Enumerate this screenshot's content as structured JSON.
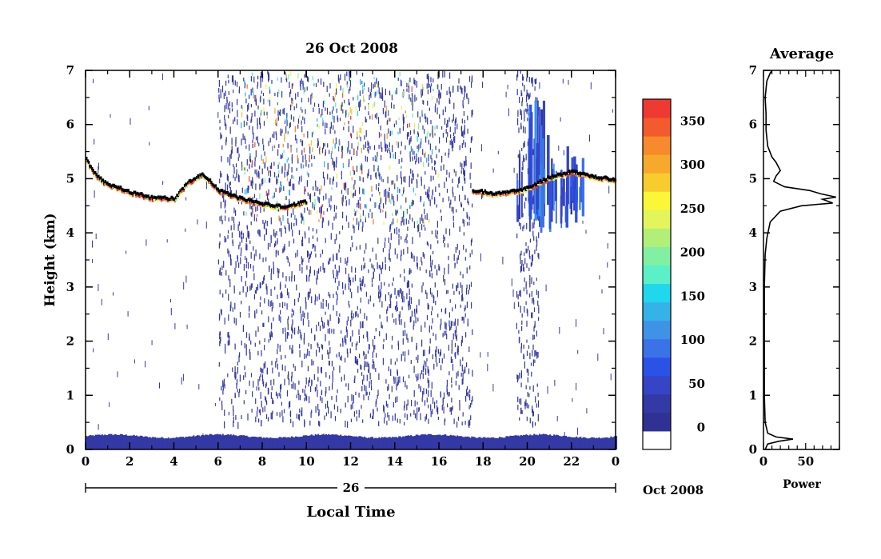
{
  "chart_data": [
    {
      "type": "heatmap",
      "title": "26 Oct 2008",
      "xlabel": "Local Time",
      "ylabel": "Height (km)",
      "x_ticks": [
        "0",
        "2",
        "4",
        "6",
        "8",
        "10",
        "12",
        "14",
        "16",
        "18",
        "20",
        "22",
        "0"
      ],
      "xlim": [
        0,
        24
      ],
      "y_ticks": [
        "0",
        "1",
        "2",
        "3",
        "4",
        "5",
        "6",
        "7"
      ],
      "ylim": [
        0,
        7
      ],
      "date_bar_label": "26",
      "date_suffix": "Oct 2008",
      "grid": false,
      "colorbar": {
        "ticks": [
          "0",
          "50",
          "100",
          "150",
          "200",
          "250",
          "300",
          "350"
        ],
        "range": [
          -25,
          375
        ],
        "colors": [
          "#ffffff",
          "#2f3292",
          "#3339a5",
          "#3545c6",
          "#2b52e6",
          "#3a73e8",
          "#3e93e6",
          "#35b3e9",
          "#21d7ee",
          "#5bf0c8",
          "#82f0a2",
          "#b1ef78",
          "#e3f55b",
          "#fbf637",
          "#f8cc2e",
          "#f7a92b",
          "#f68a2c",
          "#f35a2d",
          "#ef3a32"
        ]
      },
      "features": {
        "ground_clutter": [
          {
            "x": [
              0,
              24
            ],
            "top_km": [
              0.2,
              0.26
            ],
            "value": 20
          }
        ],
        "echo_layer": [
          {
            "x": 0.0,
            "y": 5.35
          },
          {
            "x": 0.3,
            "y": 5.1
          },
          {
            "x": 0.8,
            "y": 4.9
          },
          {
            "x": 1.5,
            "y": 4.8
          },
          {
            "x": 2.0,
            "y": 4.72
          },
          {
            "x": 3.0,
            "y": 4.62
          },
          {
            "x": 4.0,
            "y": 4.6
          },
          {
            "x": 4.6,
            "y": 4.9
          },
          {
            "x": 5.3,
            "y": 5.05
          },
          {
            "x": 6.0,
            "y": 4.75
          },
          {
            "x": 7.0,
            "y": 4.6
          },
          {
            "x": 8.0,
            "y": 4.5
          },
          {
            "x": 9.0,
            "y": 4.45
          },
          {
            "x": 10.0,
            "y": 4.55
          },
          {
            "x": 17.5,
            "y": 4.75
          },
          {
            "x": 18.5,
            "y": 4.7
          },
          {
            "x": 19.5,
            "y": 4.75
          },
          {
            "x": 20.0,
            "y": 4.8
          },
          {
            "x": 21.0,
            "y": 5.0
          },
          {
            "x": 22.0,
            "y": 5.1
          },
          {
            "x": 23.0,
            "y": 5.0
          },
          {
            "x": 24.0,
            "y": 4.95
          }
        ],
        "noise_region": {
          "x": [
            6.0,
            17.5
          ],
          "y": [
            0.5,
            7.0
          ],
          "value": 20
        },
        "noise_region_2": {
          "x": [
            19.5,
            20.5
          ],
          "y": [
            0.5,
            7.0
          ],
          "value": 20
        },
        "turbulence_patch": {
          "x": [
            7.0,
            16.0
          ],
          "y": [
            4.2,
            7.0
          ],
          "value_max": 360
        },
        "blue_plumes": {
          "x": [
            19.5,
            22.5
          ],
          "y": [
            4.0,
            6.5
          ],
          "value_max": 110
        }
      }
    },
    {
      "type": "line",
      "title": "Average",
      "xlabel": "Power",
      "x_ticks": [
        "0",
        "50"
      ],
      "y_ticks": [
        "0",
        "1",
        "2",
        "3",
        "4",
        "5",
        "6",
        "7"
      ],
      "xlim": [
        0,
        90
      ],
      "ylim": [
        0,
        7
      ],
      "series": [
        {
          "points": [
            {
              "y": 0.0,
              "x": 2
            },
            {
              "y": 0.1,
              "x": 5
            },
            {
              "y": 0.15,
              "x": 18
            },
            {
              "y": 0.19,
              "x": 35
            },
            {
              "y": 0.23,
              "x": 15
            },
            {
              "y": 0.3,
              "x": 5
            },
            {
              "y": 0.5,
              "x": 2
            },
            {
              "y": 1.0,
              "x": 1
            },
            {
              "y": 2.0,
              "x": 1
            },
            {
              "y": 3.0,
              "x": 1
            },
            {
              "y": 3.6,
              "x": 2
            },
            {
              "y": 3.9,
              "x": 4
            },
            {
              "y": 4.2,
              "x": 8
            },
            {
              "y": 4.4,
              "x": 20
            },
            {
              "y": 4.5,
              "x": 45
            },
            {
              "y": 4.55,
              "x": 82
            },
            {
              "y": 4.62,
              "x": 70
            },
            {
              "y": 4.66,
              "x": 86
            },
            {
              "y": 4.72,
              "x": 68
            },
            {
              "y": 4.78,
              "x": 55
            },
            {
              "y": 4.85,
              "x": 25
            },
            {
              "y": 4.95,
              "x": 12
            },
            {
              "y": 5.05,
              "x": 15
            },
            {
              "y": 5.15,
              "x": 20
            },
            {
              "y": 5.3,
              "x": 15
            },
            {
              "y": 5.4,
              "x": 10
            },
            {
              "y": 5.6,
              "x": 5
            },
            {
              "y": 5.9,
              "x": 3
            },
            {
              "y": 6.2,
              "x": 3
            },
            {
              "y": 6.5,
              "x": 2
            },
            {
              "y": 6.8,
              "x": 4
            },
            {
              "y": 6.95,
              "x": 8
            },
            {
              "y": 7.0,
              "x": 10
            }
          ]
        }
      ]
    }
  ]
}
